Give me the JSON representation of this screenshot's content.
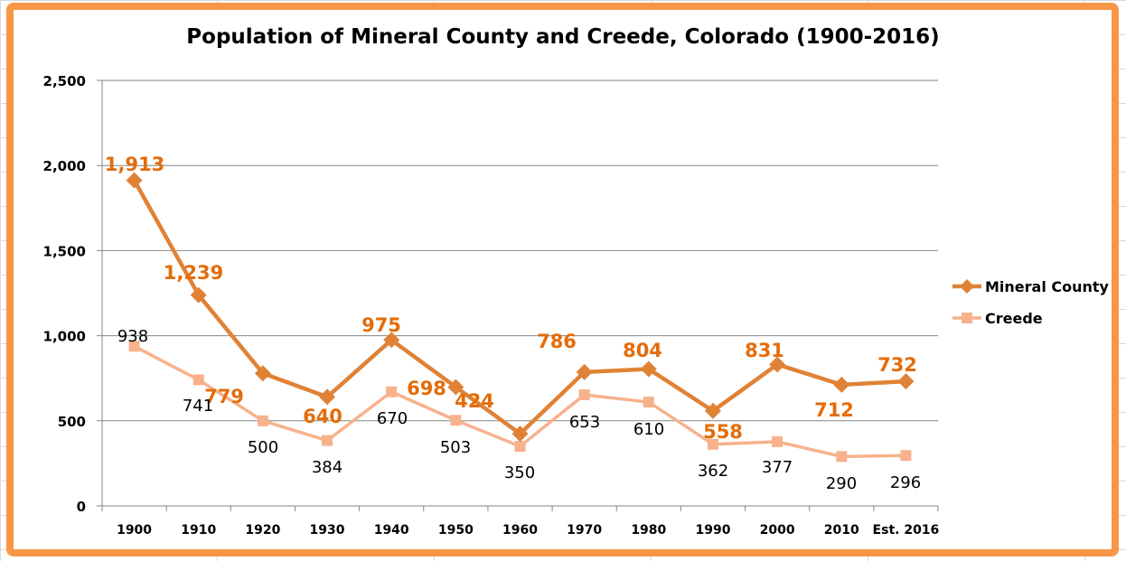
{
  "chart_data": {
    "type": "line",
    "title": "Population of Mineral County and Creede, Colorado (1900-2016)",
    "categories": [
      "1900",
      "1910",
      "1920",
      "1930",
      "1940",
      "1950",
      "1960",
      "1970",
      "1980",
      "1990",
      "2000",
      "2010",
      "Est. 2016"
    ],
    "ylim": [
      0,
      2500
    ],
    "yticks": [
      0,
      500,
      1000,
      1500,
      2000,
      2500
    ],
    "ytick_labels": [
      "0",
      "500",
      "1,000",
      "1,500",
      "2,000",
      "2,500"
    ],
    "grid": true,
    "legend": "right",
    "series": [
      {
        "name": "Mineral County",
        "values": [
          1913,
          1239,
          779,
          640,
          975,
          698,
          424,
          786,
          804,
          558,
          831,
          712,
          732
        ],
        "labels": [
          "1,913",
          "1,239",
          "779",
          "640",
          "975",
          "698",
          "424",
          "786",
          "804",
          "558",
          "831",
          "712",
          "732"
        ],
        "color": "#E08236",
        "label_color": "#E46C0A",
        "marker": "diamond"
      },
      {
        "name": "Creede",
        "values": [
          938,
          741,
          500,
          384,
          670,
          503,
          350,
          653,
          610,
          362,
          377,
          290,
          296
        ],
        "labels": [
          "938",
          "741",
          "500",
          "384",
          "670",
          "503",
          "350",
          "653",
          "610",
          "362",
          "377",
          "290",
          "296"
        ],
        "color": "#F7B28C",
        "label_color": "#000000",
        "marker": "square"
      }
    ]
  },
  "frame_color": "#F79646"
}
